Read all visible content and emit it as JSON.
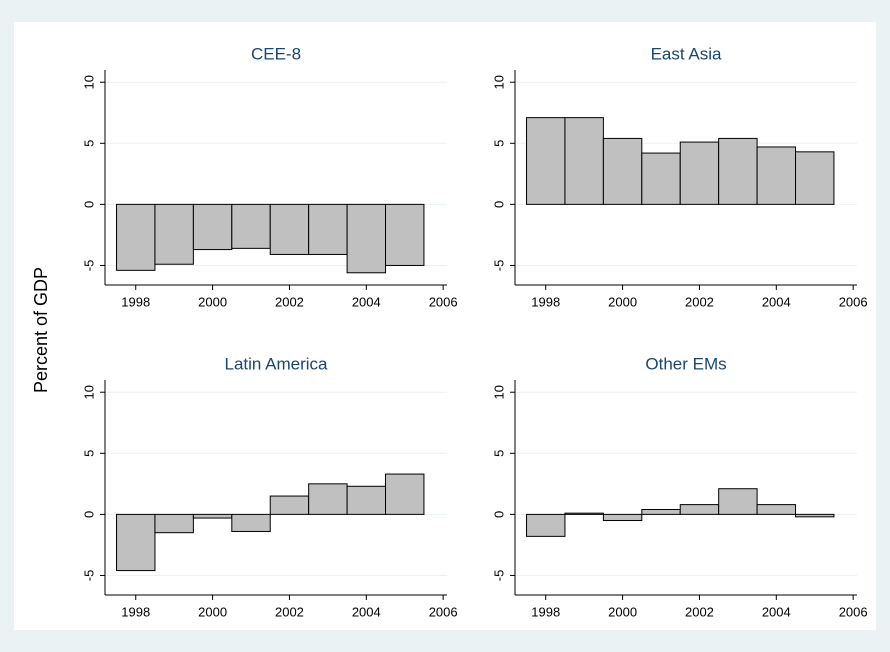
{
  "y_label": "Percent of GDP",
  "chart_data": [
    {
      "type": "bar",
      "title": "CEE-8",
      "x": [
        1998,
        1999,
        2000,
        2001,
        2002,
        2003,
        2004,
        2005
      ],
      "values": [
        -5.4,
        -4.9,
        -3.7,
        -3.6,
        -4.1,
        -4.1,
        -5.6,
        -5.0
      ],
      "color": "#c0c0c0",
      "xlim": [
        1997.2,
        2006.1
      ],
      "ylim": [
        -6.6,
        11
      ],
      "xticks": [
        1998,
        2000,
        2002,
        2004,
        2006
      ],
      "yticks": [
        -5,
        0,
        5,
        10
      ],
      "grid": true
    },
    {
      "type": "bar",
      "title": "East Asia",
      "x": [
        1998,
        1999,
        2000,
        2001,
        2002,
        2003,
        2004,
        2005
      ],
      "values": [
        7.1,
        7.1,
        5.4,
        4.2,
        5.1,
        5.4,
        4.7,
        4.3
      ],
      "color": "#c0c0c0",
      "xlim": [
        1997.2,
        2006.1
      ],
      "ylim": [
        -6.6,
        11
      ],
      "xticks": [
        1998,
        2000,
        2002,
        2004,
        2006
      ],
      "yticks": [
        -5,
        0,
        5,
        10
      ],
      "grid": true
    },
    {
      "type": "bar",
      "title": "Latin America",
      "x": [
        1998,
        1999,
        2000,
        2001,
        2002,
        2003,
        2004,
        2005
      ],
      "values": [
        -4.6,
        -1.5,
        -0.3,
        -1.4,
        1.5,
        2.5,
        2.3,
        3.3
      ],
      "color": "#c0c0c0",
      "xlim": [
        1997.2,
        2006.1
      ],
      "ylim": [
        -6.6,
        11
      ],
      "xticks": [
        1998,
        2000,
        2002,
        2004,
        2006
      ],
      "yticks": [
        -5,
        0,
        5,
        10
      ],
      "grid": true
    },
    {
      "type": "bar",
      "title": "Other EMs",
      "x": [
        1998,
        1999,
        2000,
        2001,
        2002,
        2003,
        2004,
        2005
      ],
      "values": [
        -1.8,
        0.1,
        -0.5,
        0.4,
        0.8,
        2.1,
        0.8,
        -0.2
      ],
      "color": "#c0c0c0",
      "xlim": [
        1997.2,
        2006.1
      ],
      "ylim": [
        -6.6,
        11
      ],
      "xticks": [
        1998,
        2000,
        2002,
        2004,
        2006
      ],
      "yticks": [
        -5,
        0,
        5,
        10
      ],
      "grid": true
    }
  ]
}
